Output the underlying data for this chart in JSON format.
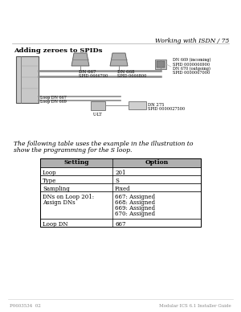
{
  "page_header_right": "Working with ISDN / 75",
  "section_title": "Adding zeroes to SPIDs",
  "body_text_line1": "The following table uses the example in the illustration to",
  "body_text_line2": "show the programming for the S loop.",
  "table_headers": [
    "Setting",
    "Option"
  ],
  "table_rows": [
    [
      "Loop",
      "201"
    ],
    [
      "Type",
      "S"
    ],
    [
      "Sampling",
      "Fixed"
    ],
    [
      "DNs on Loop 201:\nAssign DNs",
      "667: Assigned\n668: Assigned\n669: Assigned\n670: Assigned"
    ],
    [
      "Loop DN",
      "667"
    ]
  ],
  "footer_left": "P0603534  02",
  "footer_right": "Modular ICS 6.1 Installer Guide",
  "top_right_labels": [
    "DN 669 (incoming)",
    "SPID 0000066900",
    "DN 670 (outgoing)",
    "SPID 0000067000"
  ],
  "phone1_dn": "DN 667",
  "phone1_spid": "SPID 0666700",
  "phone2_dn": "DN 668",
  "phone2_spid": "SPID 0666800",
  "loop_dn_667": "Loop DN 667",
  "loop_dn_669": "Loop DN 669",
  "u_lt": "U-LT",
  "dn275_label": "DN 275",
  "spid275_label": "SPID 0000027500",
  "bg_color": "#ffffff",
  "text_color": "#000000",
  "table_header_bg": "#b0b0b0",
  "table_border_color": "#000000",
  "gray_dark": "#777777",
  "gray_mid": "#999999",
  "gray_light": "#cccccc",
  "gray_box": "#aaaaaa"
}
